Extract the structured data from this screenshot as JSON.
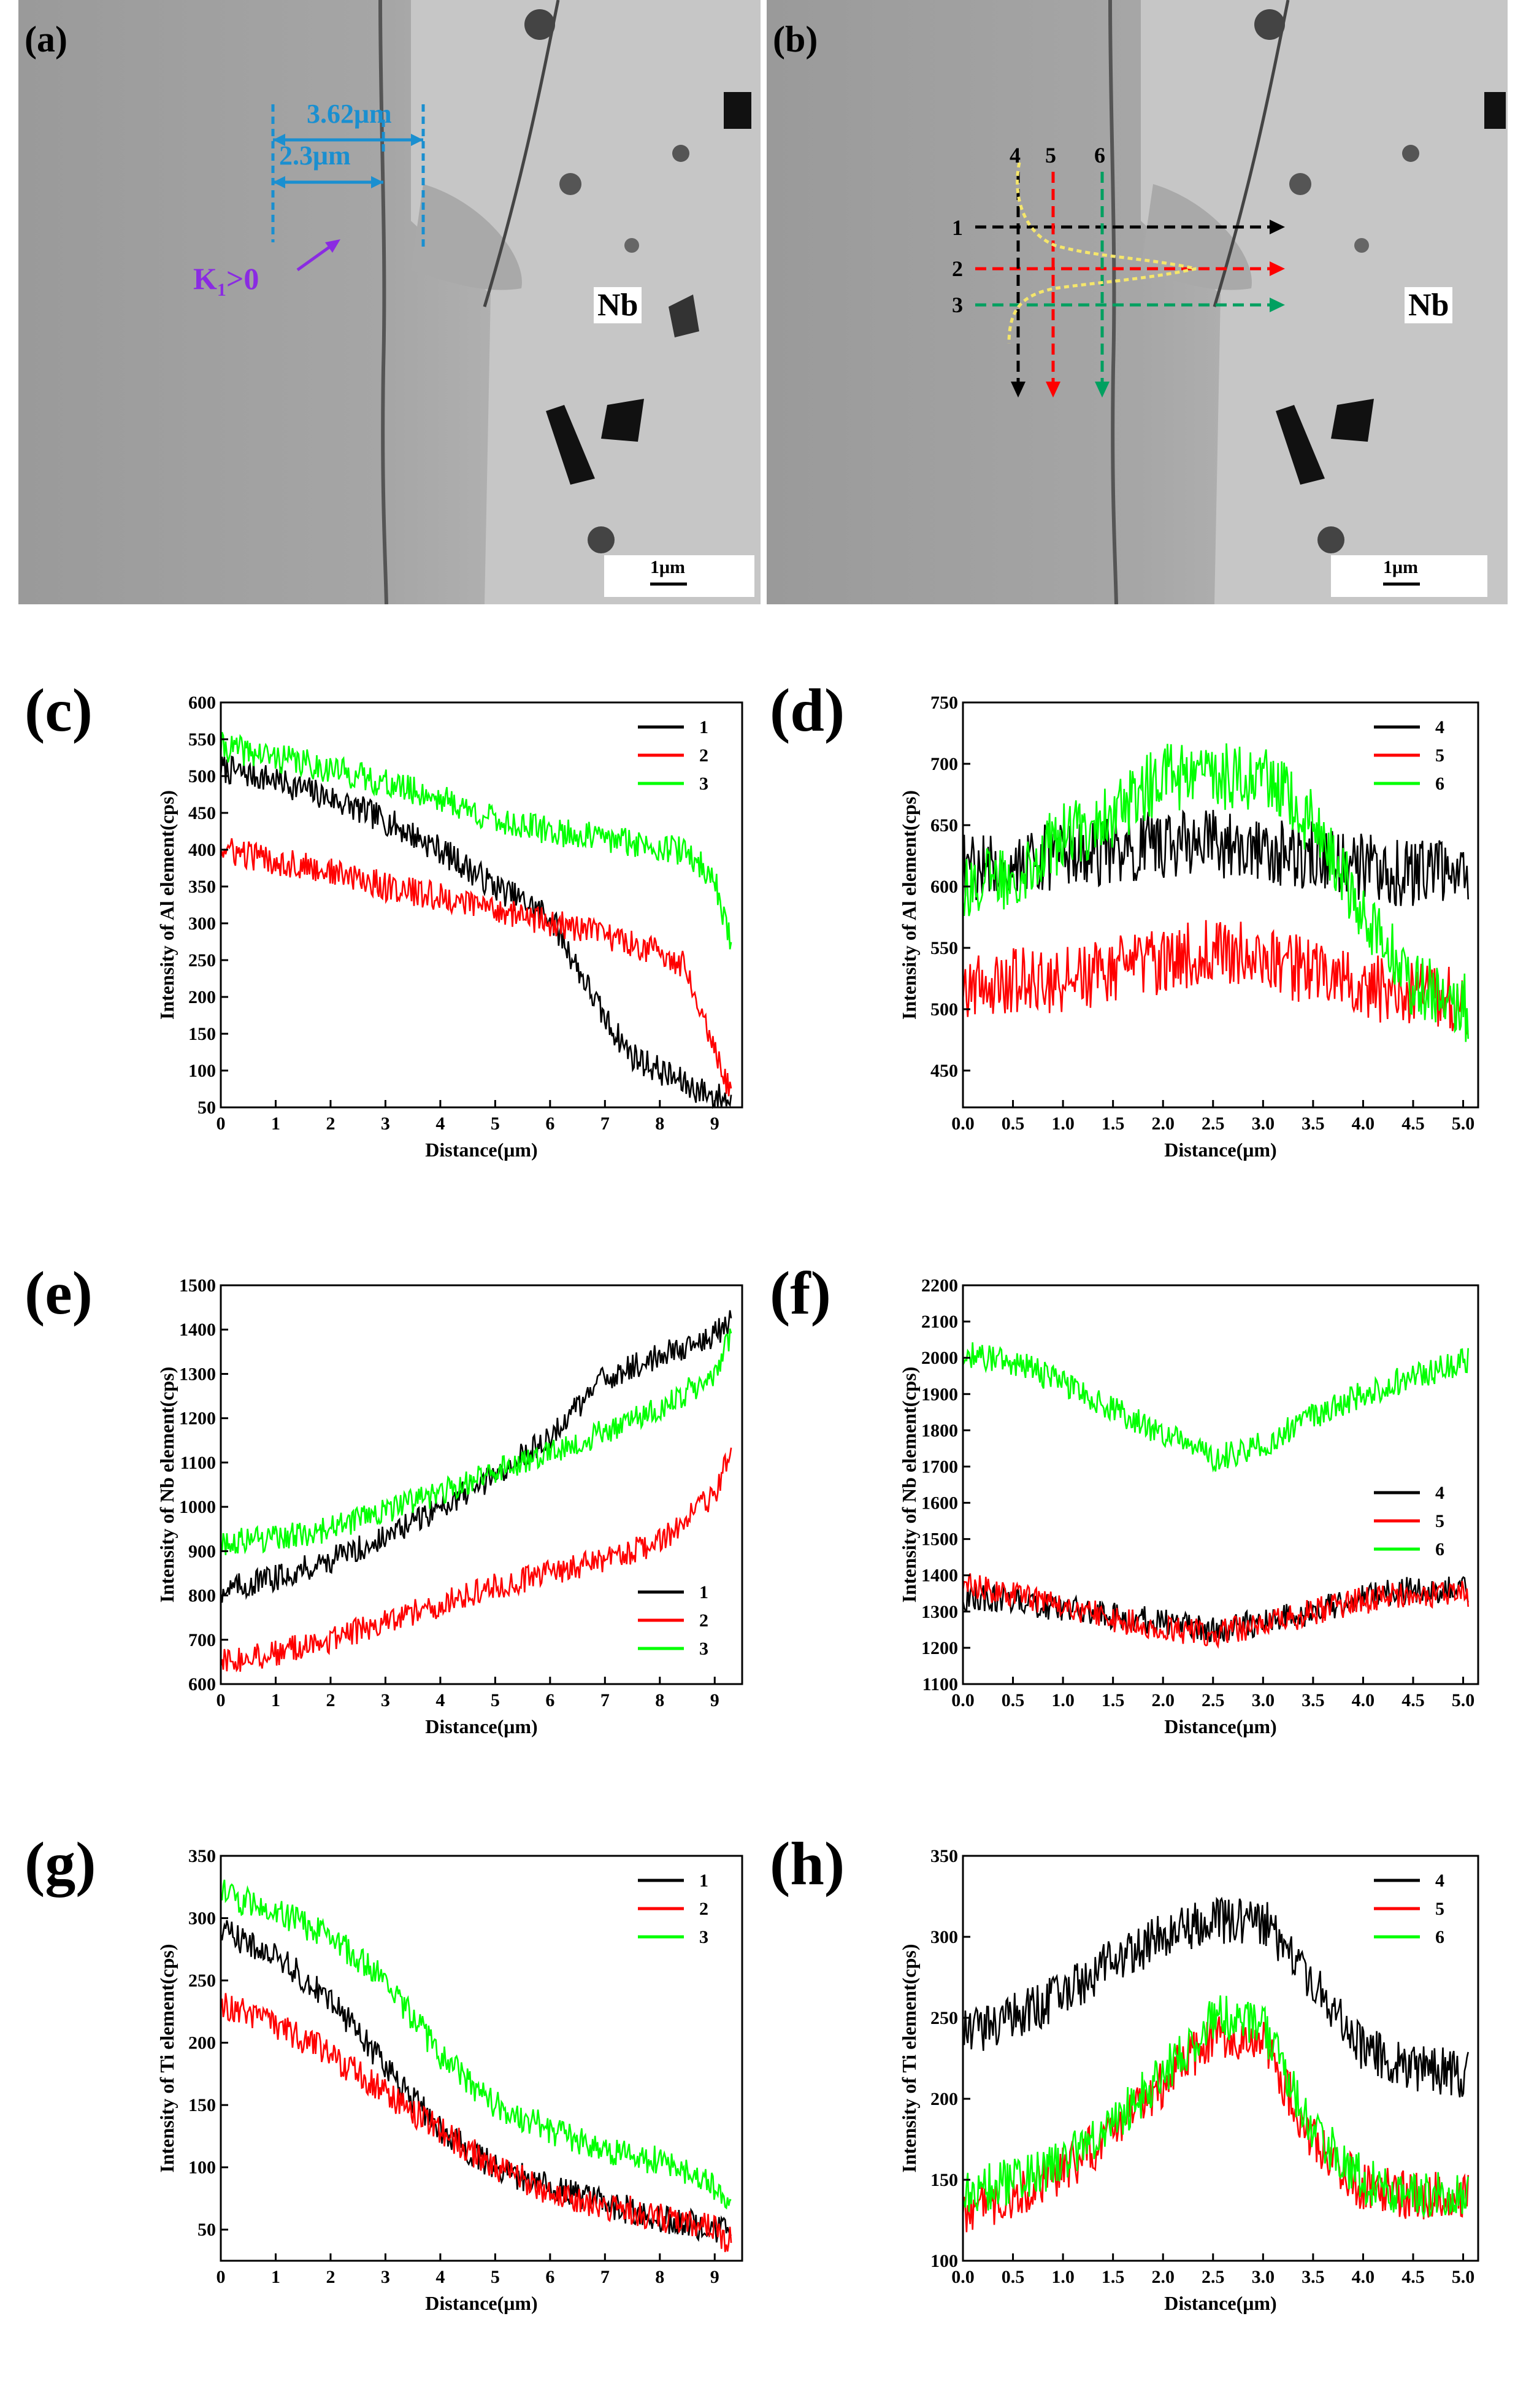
{
  "images": [
    {
      "label": "(a)",
      "annotations": {
        "dim_long": "3.62μm",
        "dim_short": "2.3μm",
        "k1_text": "K",
        "k1_sub": "1",
        "k1_rest": ">0",
        "nb_label": "Nb",
        "scale_bar": "1μm"
      }
    },
    {
      "label": "(b)",
      "annotations": {
        "h_lines": [
          "1",
          "2",
          "3"
        ],
        "v_lines": [
          "4",
          "5",
          "6"
        ],
        "nb_label": "Nb",
        "scale_bar": "1μm"
      }
    }
  ],
  "colors": {
    "black": "#000000",
    "red": "#ff0000",
    "green": "#00ff00",
    "blue": "#1a8fd0",
    "purple": "#8a2be2",
    "yellow": "#f5e66b"
  },
  "chart_data": [
    {
      "id": "c",
      "label": "(c)",
      "type": "line",
      "xlabel": "Distance(μm)",
      "ylabel": "Intensity of Al element(cps)",
      "xlim": [
        0,
        9.5
      ],
      "ylim": [
        50,
        600
      ],
      "xticks": [
        0,
        1,
        2,
        3,
        4,
        5,
        6,
        7,
        8,
        9
      ],
      "xtick_labels": [
        "0",
        "1",
        "2",
        "3",
        "4",
        "5",
        "6",
        "7",
        "8",
        "9"
      ],
      "yticks": [
        50,
        100,
        150,
        200,
        250,
        300,
        350,
        400,
        450,
        500,
        550,
        600
      ],
      "ytick_labels": [
        "50",
        "100",
        "150",
        "200",
        "250",
        "300",
        "350",
        "400",
        "450",
        "500",
        "550",
        "600"
      ],
      "legend": "top-right",
      "noise": 20,
      "series": [
        {
          "name": "1",
          "color": "#000000",
          "x": [
            0,
            1,
            2,
            3,
            4,
            5,
            6,
            6.5,
            7,
            7.5,
            8,
            8.5,
            9,
            9.3
          ],
          "y": [
            510,
            495,
            470,
            440,
            400,
            350,
            310,
            240,
            170,
            120,
            100,
            80,
            65,
            60
          ]
        },
        {
          "name": "2",
          "color": "#ff0000",
          "x": [
            0,
            1,
            2,
            3,
            4,
            5,
            6,
            7,
            8,
            8.5,
            9,
            9.3
          ],
          "y": [
            400,
            385,
            370,
            350,
            335,
            320,
            300,
            285,
            260,
            240,
            130,
            70
          ]
        },
        {
          "name": "3",
          "color": "#00ff00",
          "x": [
            0,
            1,
            2,
            3,
            4,
            5,
            6,
            7,
            8,
            8.5,
            9,
            9.3
          ],
          "y": [
            540,
            525,
            510,
            490,
            470,
            440,
            425,
            415,
            405,
            395,
            360,
            270
          ]
        }
      ]
    },
    {
      "id": "d",
      "label": "(d)",
      "type": "line",
      "xlabel": "Distance(μm)",
      "ylabel": "Intensity of Al element(cps)",
      "xlim": [
        0,
        5.15
      ],
      "ylim": [
        420,
        750
      ],
      "xticks": [
        0,
        0.5,
        1,
        1.5,
        2,
        2.5,
        3,
        3.5,
        4,
        4.5,
        5
      ],
      "xtick_labels": [
        "0.0",
        "0.5",
        "1.0",
        "1.5",
        "2.0",
        "2.5",
        "3.0",
        "3.5",
        "4.0",
        "4.5",
        "5.0"
      ],
      "yticks": [
        450,
        500,
        550,
        600,
        650,
        700,
        750
      ],
      "ytick_labels": [
        "450",
        "500",
        "550",
        "600",
        "650",
        "700",
        "750"
      ],
      "legend": "top-right",
      "noise": 28,
      "series": [
        {
          "name": "4",
          "color": "#000000",
          "x": [
            0,
            1,
            2,
            2.5,
            3,
            3.5,
            4,
            4.5,
            5.05
          ],
          "y": [
            615,
            625,
            635,
            635,
            630,
            625,
            615,
            610,
            610
          ]
        },
        {
          "name": "5",
          "color": "#ff0000",
          "x": [
            0,
            1,
            2,
            2.5,
            3,
            3.5,
            4,
            4.5,
            5.05
          ],
          "y": [
            520,
            525,
            540,
            550,
            540,
            530,
            520,
            510,
            505
          ]
        },
        {
          "name": "6",
          "color": "#00ff00",
          "x": [
            0,
            0.5,
            1,
            1.5,
            2,
            2.5,
            3,
            3.5,
            4,
            4.5,
            5.05
          ],
          "y": [
            600,
            610,
            640,
            660,
            690,
            690,
            690,
            650,
            580,
            520,
            500
          ]
        }
      ]
    },
    {
      "id": "e",
      "label": "(e)",
      "type": "line",
      "xlabel": "Distance(μm)",
      "ylabel": "Intensity of Nb element(cps)",
      "xlim": [
        0,
        9.5
      ],
      "ylim": [
        600,
        1500
      ],
      "xticks": [
        0,
        1,
        2,
        3,
        4,
        5,
        6,
        7,
        8,
        9
      ],
      "xtick_labels": [
        "0",
        "1",
        "2",
        "3",
        "4",
        "5",
        "6",
        "7",
        "8",
        "9"
      ],
      "yticks": [
        600,
        700,
        800,
        900,
        1000,
        1100,
        1200,
        1300,
        1400,
        1500
      ],
      "ytick_labels": [
        "600",
        "700",
        "800",
        "900",
        "1000",
        "1100",
        "1200",
        "1300",
        "1400",
        "1500"
      ],
      "legend": "bottom-right",
      "noise": 30,
      "series": [
        {
          "name": "1",
          "color": "#000000",
          "x": [
            0,
            1,
            2,
            3,
            4,
            5,
            6,
            7,
            8,
            9,
            9.3
          ],
          "y": [
            810,
            840,
            880,
            930,
            1000,
            1070,
            1160,
            1290,
            1340,
            1390,
            1420
          ]
        },
        {
          "name": "2",
          "color": "#ff0000",
          "x": [
            0,
            1,
            2,
            3,
            4,
            5,
            6,
            7,
            8,
            9,
            9.3
          ],
          "y": [
            650,
            670,
            700,
            740,
            780,
            820,
            850,
            880,
            920,
            1030,
            1130
          ]
        },
        {
          "name": "3",
          "color": "#00ff00",
          "x": [
            0,
            1,
            2,
            3,
            4,
            5,
            6,
            7,
            8,
            9,
            9.3
          ],
          "y": [
            920,
            930,
            950,
            990,
            1030,
            1080,
            1120,
            1170,
            1220,
            1300,
            1390
          ]
        }
      ]
    },
    {
      "id": "f",
      "label": "(f)",
      "type": "line",
      "xlabel": "Distance(μm)",
      "ylabel": "Intensity of Nb element(cps)",
      "xlim": [
        0,
        5.15
      ],
      "ylim": [
        1100,
        2200
      ],
      "xticks": [
        0,
        0.5,
        1,
        1.5,
        2,
        2.5,
        3,
        3.5,
        4,
        4.5,
        5
      ],
      "xtick_labels": [
        "0.0",
        "0.5",
        "1.0",
        "1.5",
        "2.0",
        "2.5",
        "3.0",
        "3.5",
        "4.0",
        "4.5",
        "5.0"
      ],
      "yticks": [
        1100,
        1200,
        1300,
        1400,
        1500,
        1600,
        1700,
        1800,
        1900,
        2000,
        2100,
        2200
      ],
      "ytick_labels": [
        "1100",
        "1200",
        "1300",
        "1400",
        "1500",
        "1600",
        "1700",
        "1800",
        "1900",
        "2000",
        "2100",
        "2200"
      ],
      "legend": "right",
      "noise": 38,
      "series": [
        {
          "name": "4",
          "color": "#000000",
          "x": [
            0,
            0.5,
            1,
            1.5,
            2,
            2.5,
            3,
            3.5,
            4,
            4.5,
            5.05
          ],
          "y": [
            1340,
            1330,
            1310,
            1290,
            1270,
            1250,
            1270,
            1300,
            1340,
            1360,
            1360
          ]
        },
        {
          "name": "5",
          "color": "#ff0000",
          "x": [
            0,
            0.5,
            1,
            1.5,
            2,
            2.5,
            3,
            3.5,
            4,
            4.5,
            5.05
          ],
          "y": [
            1370,
            1350,
            1320,
            1280,
            1250,
            1240,
            1260,
            1300,
            1330,
            1350,
            1350
          ]
        },
        {
          "name": "6",
          "color": "#00ff00",
          "x": [
            0,
            0.5,
            1,
            1.5,
            2,
            2.5,
            3,
            3.5,
            4,
            4.5,
            5.05
          ],
          "y": [
            2010,
            1990,
            1930,
            1860,
            1790,
            1720,
            1760,
            1840,
            1900,
            1950,
            1990
          ]
        }
      ]
    },
    {
      "id": "g",
      "label": "(g)",
      "type": "line",
      "xlabel": "Distance(μm)",
      "ylabel": "Intensity of Ti element(cps)",
      "xlim": [
        0,
        9.5
      ],
      "ylim": [
        25,
        350
      ],
      "xticks": [
        0,
        1,
        2,
        3,
        4,
        5,
        6,
        7,
        8,
        9
      ],
      "xtick_labels": [
        "0",
        "1",
        "2",
        "3",
        "4",
        "5",
        "6",
        "7",
        "8",
        "9"
      ],
      "yticks": [
        50,
        100,
        150,
        200,
        250,
        300,
        350
      ],
      "ytick_labels": [
        "50",
        "100",
        "150",
        "200",
        "250",
        "300",
        "350"
      ],
      "legend": "top-right",
      "noise": 12,
      "series": [
        {
          "name": "1",
          "color": "#000000",
          "x": [
            0,
            1,
            2,
            3,
            4,
            5,
            6,
            7,
            8,
            9,
            9.3
          ],
          "y": [
            290,
            270,
            235,
            180,
            130,
            100,
            85,
            70,
            60,
            50,
            45
          ]
        },
        {
          "name": "2",
          "color": "#ff0000",
          "x": [
            0,
            1,
            2,
            3,
            4,
            5,
            6,
            7,
            8,
            9,
            9.3
          ],
          "y": [
            230,
            215,
            190,
            160,
            130,
            100,
            80,
            70,
            60,
            50,
            40
          ]
        },
        {
          "name": "3",
          "color": "#00ff00",
          "x": [
            0,
            1,
            2,
            3,
            4,
            5,
            6,
            7,
            8,
            9,
            9.3
          ],
          "y": [
            320,
            305,
            285,
            250,
            190,
            150,
            130,
            115,
            105,
            85,
            75
          ]
        }
      ]
    },
    {
      "id": "h",
      "label": "(h)",
      "type": "line",
      "xlabel": "Distance(μm)",
      "ylabel": "Intensity of Ti element(cps)",
      "xlim": [
        0,
        5.15
      ],
      "ylim": [
        100,
        350
      ],
      "xticks": [
        0,
        0.5,
        1,
        1.5,
        2,
        2.5,
        3,
        3.5,
        4,
        4.5,
        5
      ],
      "xtick_labels": [
        "0.0",
        "0.5",
        "1.0",
        "1.5",
        "2.0",
        "2.5",
        "3.0",
        "3.5",
        "4.0",
        "4.5",
        "5.0"
      ],
      "yticks": [
        100,
        150,
        200,
        250,
        300,
        350
      ],
      "ytick_labels": [
        "100",
        "150",
        "200",
        "250",
        "300",
        "350"
      ],
      "legend": "top-right",
      "noise": 15,
      "series": [
        {
          "name": "4",
          "color": "#000000",
          "x": [
            0,
            0.5,
            1,
            1.5,
            2,
            2.5,
            3,
            3.5,
            4,
            4.5,
            5.05
          ],
          "y": [
            240,
            250,
            265,
            285,
            300,
            310,
            310,
            270,
            230,
            220,
            215
          ]
        },
        {
          "name": "5",
          "color": "#ff0000",
          "x": [
            0,
            0.5,
            1,
            1.5,
            2,
            2.5,
            3,
            3.5,
            4,
            4.5,
            5.05
          ],
          "y": [
            130,
            140,
            155,
            180,
            210,
            240,
            235,
            175,
            145,
            140,
            140
          ]
        },
        {
          "name": "6",
          "color": "#00ff00",
          "x": [
            0,
            0.5,
            1,
            1.5,
            2,
            2.5,
            3,
            3.5,
            4,
            4.5,
            5.05
          ],
          "y": [
            140,
            150,
            160,
            185,
            215,
            250,
            245,
            180,
            150,
            140,
            140
          ]
        }
      ]
    }
  ]
}
